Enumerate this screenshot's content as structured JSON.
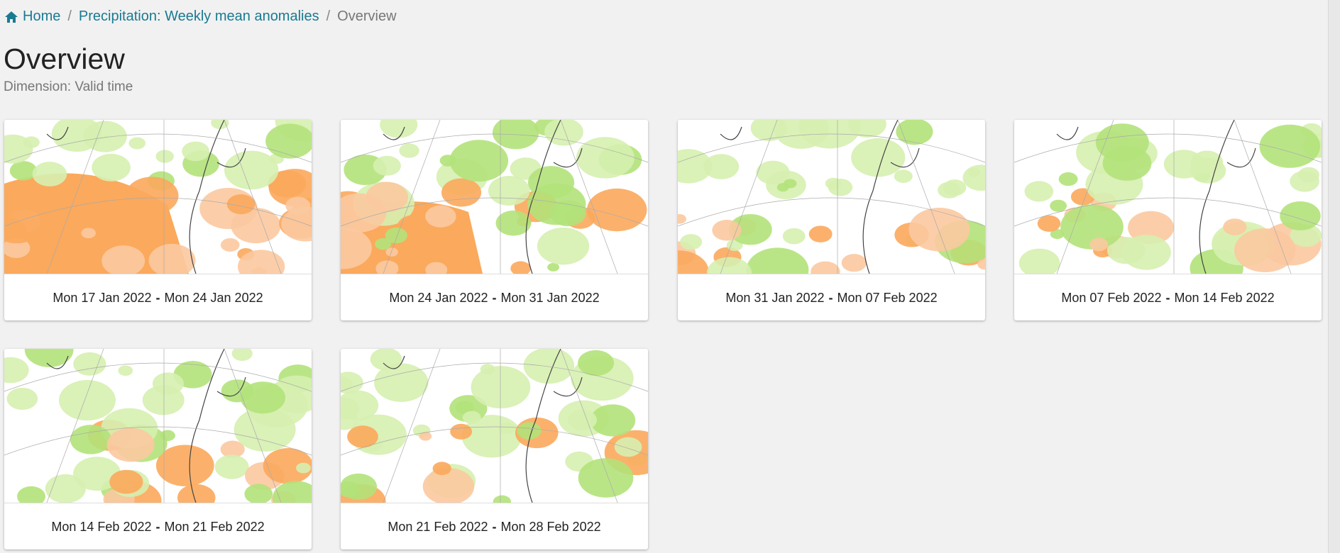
{
  "breadcrumb": {
    "items": [
      "Home",
      "Precipitation: Weekly mean anomalies",
      "Overview"
    ],
    "separator": "/"
  },
  "header": {
    "title": "Overview",
    "subtitle": "Dimension: Valid time"
  },
  "range_separator": "-",
  "cards": [
    {
      "from": "Mon 17 Jan 2022",
      "to": "Mon 24 Jan 2022"
    },
    {
      "from": "Mon 24 Jan 2022",
      "to": "Mon 31 Jan 2022"
    },
    {
      "from": "Mon 31 Jan 2022",
      "to": "Mon 07 Feb 2022"
    },
    {
      "from": "Mon 07 Feb 2022",
      "to": "Mon 14 Feb 2022"
    },
    {
      "from": "Mon 14 Feb 2022",
      "to": "Mon 21 Feb 2022"
    },
    {
      "from": "Mon 21 Feb 2022",
      "to": "Mon 28 Feb 2022"
    }
  ]
}
